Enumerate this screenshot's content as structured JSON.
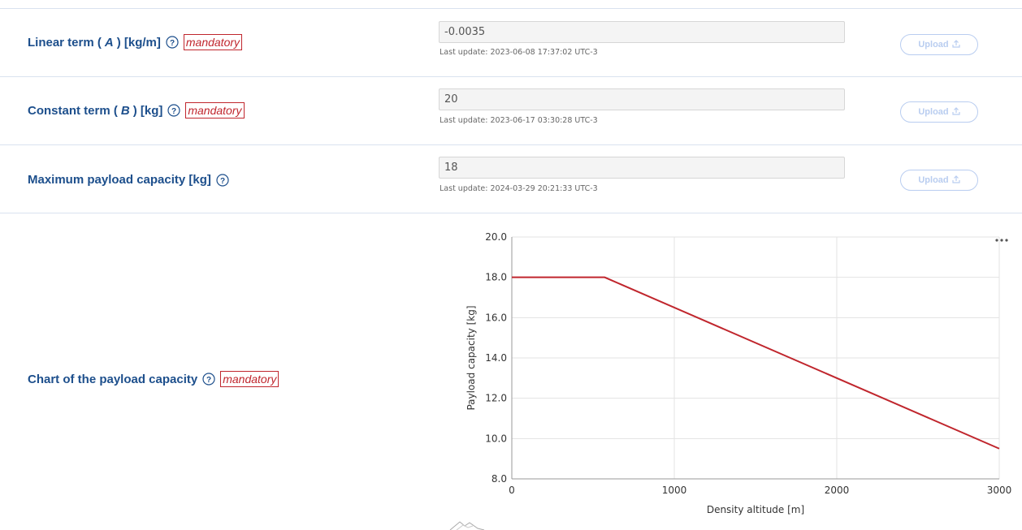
{
  "rows": [
    {
      "label_pre": "Linear term (",
      "label_var": "A",
      "label_post": ") [kg/m]",
      "mandatory": "mandatory",
      "value": "-0.0035",
      "last_update": "Last update: 2023-06-08 17:37:02 UTC-3",
      "upload_label": "Upload"
    },
    {
      "label_pre": "Constant term (",
      "label_var": "B",
      "label_post": ") [kg]",
      "mandatory": "mandatory",
      "value": "20",
      "last_update": "Last update: 2023-06-17 03:30:28 UTC-3",
      "upload_label": "Upload"
    },
    {
      "label_pre": "Maximum payload capacity [kg]",
      "value": "18",
      "last_update": "Last update: 2024-03-29 20:21:33 UTC-3",
      "upload_label": "Upload"
    }
  ],
  "chart_row": {
    "label": "Chart of the payload capacity",
    "mandatory": "mandatory"
  },
  "icons": {
    "help": "question-circle-icon",
    "upload": "upload-icon",
    "menu": "more-dots-icon",
    "logo": "mountain-logo-icon"
  },
  "colors": {
    "label": "#1d4f8c",
    "mandatory": "#c0262d",
    "line": "#c0262d",
    "upload_disabled": "#b9cdf0"
  },
  "chart_data": {
    "type": "line",
    "title": "",
    "xlabel": "Density altitude [m]",
    "ylabel": "Payload capacity [kg]",
    "xlim": [
      0,
      3000
    ],
    "ylim": [
      8,
      20
    ],
    "x_ticks": [
      "0",
      "1000",
      "2000",
      "3000"
    ],
    "y_ticks": [
      "8.0",
      "10.0",
      "12.0",
      "14.0",
      "16.0",
      "18.0",
      "20.0"
    ],
    "grid": true,
    "legend": "none",
    "series": [
      {
        "x": [
          0,
          571.4,
          3000
        ],
        "y": [
          18,
          18,
          9.5
        ]
      }
    ]
  }
}
